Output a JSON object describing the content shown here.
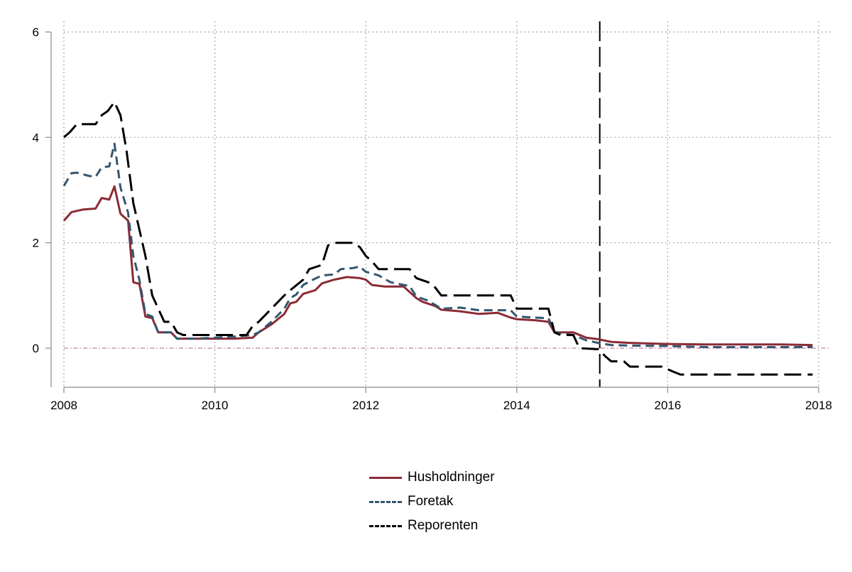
{
  "chart_data": {
    "type": "line",
    "xlabel": "",
    "ylabel": "",
    "xlim": [
      2008,
      2018
    ],
    "ylim": [
      -0.75,
      6.2
    ],
    "xticks": [
      2008,
      2010,
      2012,
      2014,
      2016,
      2018
    ],
    "yticks": [
      0,
      2,
      4,
      6
    ],
    "grid": true,
    "reference_lines": [
      {
        "type": "horizontal",
        "value": 0,
        "color": "#c97aa6"
      },
      {
        "type": "vertical",
        "value": 2015.1,
        "color": "#000000"
      }
    ],
    "legend_position": "bottom-center",
    "series": [
      {
        "name": "Husholdninger",
        "color": "#8b2b35",
        "style": "solid",
        "points": [
          [
            2008.0,
            2.42
          ],
          [
            2008.1,
            2.58
          ],
          [
            2008.25,
            2.63
          ],
          [
            2008.42,
            2.65
          ],
          [
            2008.5,
            2.85
          ],
          [
            2008.6,
            2.82
          ],
          [
            2008.67,
            3.07
          ],
          [
            2008.75,
            2.55
          ],
          [
            2008.85,
            2.42
          ],
          [
            2008.92,
            1.25
          ],
          [
            2009.0,
            1.22
          ],
          [
            2009.08,
            0.6
          ],
          [
            2009.17,
            0.57
          ],
          [
            2009.25,
            0.3
          ],
          [
            2009.42,
            0.3
          ],
          [
            2009.5,
            0.18
          ],
          [
            2009.75,
            0.18
          ],
          [
            2010.0,
            0.18
          ],
          [
            2010.25,
            0.18
          ],
          [
            2010.5,
            0.2
          ],
          [
            2010.58,
            0.3
          ],
          [
            2010.75,
            0.45
          ],
          [
            2010.92,
            0.65
          ],
          [
            2011.0,
            0.85
          ],
          [
            2011.08,
            0.88
          ],
          [
            2011.17,
            1.03
          ],
          [
            2011.33,
            1.1
          ],
          [
            2011.42,
            1.23
          ],
          [
            2011.58,
            1.3
          ],
          [
            2011.75,
            1.35
          ],
          [
            2011.92,
            1.33
          ],
          [
            2012.0,
            1.3
          ],
          [
            2012.08,
            1.2
          ],
          [
            2012.25,
            1.17
          ],
          [
            2012.5,
            1.17
          ],
          [
            2012.67,
            0.95
          ],
          [
            2012.75,
            0.88
          ],
          [
            2012.92,
            0.8
          ],
          [
            2013.0,
            0.73
          ],
          [
            2013.25,
            0.7
          ],
          [
            2013.5,
            0.65
          ],
          [
            2013.75,
            0.67
          ],
          [
            2013.92,
            0.58
          ],
          [
            2014.0,
            0.55
          ],
          [
            2014.25,
            0.53
          ],
          [
            2014.42,
            0.5
          ],
          [
            2014.5,
            0.3
          ],
          [
            2014.75,
            0.3
          ],
          [
            2014.92,
            0.2
          ],
          [
            2015.08,
            0.17
          ],
          [
            2015.25,
            0.12
          ],
          [
            2015.5,
            0.1
          ],
          [
            2016.0,
            0.08
          ],
          [
            2016.5,
            0.07
          ],
          [
            2017.0,
            0.07
          ],
          [
            2017.5,
            0.07
          ],
          [
            2017.92,
            0.06
          ]
        ]
      },
      {
        "name": "Foretak",
        "color": "#34566f",
        "style": "dashed",
        "points": [
          [
            2008.0,
            3.08
          ],
          [
            2008.1,
            3.32
          ],
          [
            2008.17,
            3.33
          ],
          [
            2008.33,
            3.27
          ],
          [
            2008.42,
            3.25
          ],
          [
            2008.5,
            3.43
          ],
          [
            2008.6,
            3.45
          ],
          [
            2008.67,
            3.88
          ],
          [
            2008.75,
            3.05
          ],
          [
            2008.85,
            2.57
          ],
          [
            2008.92,
            1.75
          ],
          [
            2009.0,
            1.3
          ],
          [
            2009.08,
            0.65
          ],
          [
            2009.17,
            0.6
          ],
          [
            2009.25,
            0.3
          ],
          [
            2009.42,
            0.3
          ],
          [
            2009.5,
            0.18
          ],
          [
            2009.75,
            0.18
          ],
          [
            2010.0,
            0.2
          ],
          [
            2010.25,
            0.22
          ],
          [
            2010.5,
            0.25
          ],
          [
            2010.58,
            0.3
          ],
          [
            2010.75,
            0.5
          ],
          [
            2010.92,
            0.75
          ],
          [
            2011.0,
            0.95
          ],
          [
            2011.08,
            1.02
          ],
          [
            2011.17,
            1.2
          ],
          [
            2011.33,
            1.32
          ],
          [
            2011.42,
            1.38
          ],
          [
            2011.58,
            1.4
          ],
          [
            2011.67,
            1.5
          ],
          [
            2011.83,
            1.52
          ],
          [
            2011.92,
            1.55
          ],
          [
            2012.0,
            1.45
          ],
          [
            2012.17,
            1.38
          ],
          [
            2012.33,
            1.25
          ],
          [
            2012.5,
            1.2
          ],
          [
            2012.58,
            1.18
          ],
          [
            2012.67,
            0.98
          ],
          [
            2012.83,
            0.9
          ],
          [
            2013.0,
            0.75
          ],
          [
            2013.25,
            0.77
          ],
          [
            2013.5,
            0.72
          ],
          [
            2013.92,
            0.72
          ],
          [
            2014.0,
            0.6
          ],
          [
            2014.25,
            0.58
          ],
          [
            2014.42,
            0.57
          ],
          [
            2014.5,
            0.3
          ],
          [
            2014.75,
            0.25
          ],
          [
            2014.92,
            0.15
          ],
          [
            2015.08,
            0.1
          ],
          [
            2015.25,
            0.06
          ],
          [
            2015.5,
            0.05
          ],
          [
            2016.0,
            0.04
          ],
          [
            2016.5,
            0.02
          ],
          [
            2017.0,
            0.02
          ],
          [
            2017.5,
            0.02
          ],
          [
            2017.92,
            0.02
          ]
        ]
      },
      {
        "name": "Reporenten",
        "color": "#000000",
        "style": "longdash",
        "points": [
          [
            2008.0,
            4.0
          ],
          [
            2008.08,
            4.1
          ],
          [
            2008.17,
            4.25
          ],
          [
            2008.42,
            4.25
          ],
          [
            2008.5,
            4.42
          ],
          [
            2008.58,
            4.5
          ],
          [
            2008.67,
            4.67
          ],
          [
            2008.75,
            4.42
          ],
          [
            2008.83,
            3.75
          ],
          [
            2008.92,
            2.75
          ],
          [
            2009.0,
            2.25
          ],
          [
            2009.08,
            1.75
          ],
          [
            2009.17,
            1.0
          ],
          [
            2009.25,
            0.75
          ],
          [
            2009.33,
            0.5
          ],
          [
            2009.42,
            0.5
          ],
          [
            2009.5,
            0.3
          ],
          [
            2009.58,
            0.25
          ],
          [
            2010.0,
            0.25
          ],
          [
            2010.25,
            0.25
          ],
          [
            2010.42,
            0.25
          ],
          [
            2010.5,
            0.42
          ],
          [
            2010.58,
            0.5
          ],
          [
            2010.75,
            0.75
          ],
          [
            2010.92,
            1.0
          ],
          [
            2011.0,
            1.1
          ],
          [
            2011.17,
            1.3
          ],
          [
            2011.25,
            1.5
          ],
          [
            2011.42,
            1.58
          ],
          [
            2011.5,
            1.95
          ],
          [
            2011.58,
            2.0
          ],
          [
            2011.83,
            2.0
          ],
          [
            2011.92,
            1.92
          ],
          [
            2012.0,
            1.75
          ],
          [
            2012.08,
            1.65
          ],
          [
            2012.17,
            1.5
          ],
          [
            2012.58,
            1.5
          ],
          [
            2012.67,
            1.33
          ],
          [
            2012.83,
            1.25
          ],
          [
            2012.92,
            1.15
          ],
          [
            2013.0,
            1.0
          ],
          [
            2013.92,
            1.0
          ],
          [
            2014.0,
            0.75
          ],
          [
            2014.42,
            0.75
          ],
          [
            2014.5,
            0.3
          ],
          [
            2014.58,
            0.25
          ],
          [
            2014.75,
            0.25
          ],
          [
            2014.83,
            0.0
          ],
          [
            2015.08,
            -0.02
          ],
          [
            2015.17,
            -0.15
          ],
          [
            2015.25,
            -0.25
          ],
          [
            2015.42,
            -0.25
          ],
          [
            2015.5,
            -0.35
          ],
          [
            2015.92,
            -0.35
          ],
          [
            2016.08,
            -0.45
          ],
          [
            2016.17,
            -0.5
          ],
          [
            2017.0,
            -0.5
          ],
          [
            2017.92,
            -0.5
          ]
        ]
      }
    ]
  }
}
